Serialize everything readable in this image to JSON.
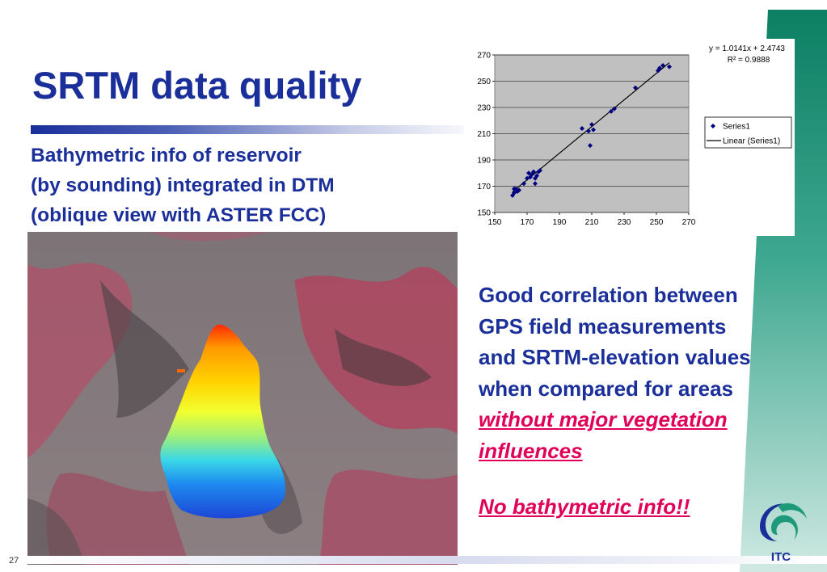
{
  "slide": {
    "title": "SRTM data quality",
    "subtitle_lines": [
      "Bathymetric info of reservoir",
      "(by sounding) integrated in DTM",
      "(oblique view with ASTER FCC)"
    ],
    "right_text_lines": [
      "Good correlation between",
      "GPS field measurements",
      "and SRTM-elevation values",
      "when compared for areas"
    ],
    "emphasis_lines": [
      "without major vegetation",
      "influences"
    ],
    "note": "No bathymetric info!!",
    "page_number": "27",
    "logo_text": "ITC",
    "colors": {
      "title": "#1a2f9a",
      "emphasis": "#e0005a",
      "accent_green": "#0f8a6e"
    }
  },
  "chart_data": {
    "type": "scatter",
    "title": "",
    "xlabel": "",
    "ylabel": "",
    "xlim": [
      150,
      270
    ],
    "ylim": [
      150,
      270
    ],
    "x_ticks": [
      "150",
      "170",
      "190",
      "210",
      "230",
      "250",
      "270"
    ],
    "y_ticks": [
      "150",
      "170",
      "190",
      "210",
      "230",
      "250",
      "270"
    ],
    "grid": "horizontal",
    "plot_background": "#c0c0c0",
    "legend_position": "right",
    "legend": [
      "Series1",
      "Linear (Series1)"
    ],
    "trendline_equation": "y = 1.0141x + 2.4743",
    "r_squared_label": "R² = 0.9888",
    "trendline": {
      "slope": 1.0141,
      "intercept": 2.4743
    },
    "series": [
      {
        "name": "Series1",
        "marker_color": "#000080",
        "points": [
          [
            161,
            163
          ],
          [
            162,
            165
          ],
          [
            162,
            168
          ],
          [
            163,
            168
          ],
          [
            164,
            166
          ],
          [
            165,
            167
          ],
          [
            168,
            172
          ],
          [
            170,
            176
          ],
          [
            171,
            180
          ],
          [
            172,
            177
          ],
          [
            173,
            179
          ],
          [
            174,
            181
          ],
          [
            175,
            172
          ],
          [
            175,
            176
          ],
          [
            176,
            178
          ],
          [
            177,
            181
          ],
          [
            178,
            182
          ],
          [
            204,
            214
          ],
          [
            208,
            212
          ],
          [
            209,
            201
          ],
          [
            210,
            217
          ],
          [
            211,
            213
          ],
          [
            222,
            227
          ],
          [
            224,
            229
          ],
          [
            237,
            245
          ],
          [
            251,
            258
          ],
          [
            252,
            260
          ],
          [
            254,
            262
          ],
          [
            258,
            261
          ]
        ]
      }
    ]
  }
}
